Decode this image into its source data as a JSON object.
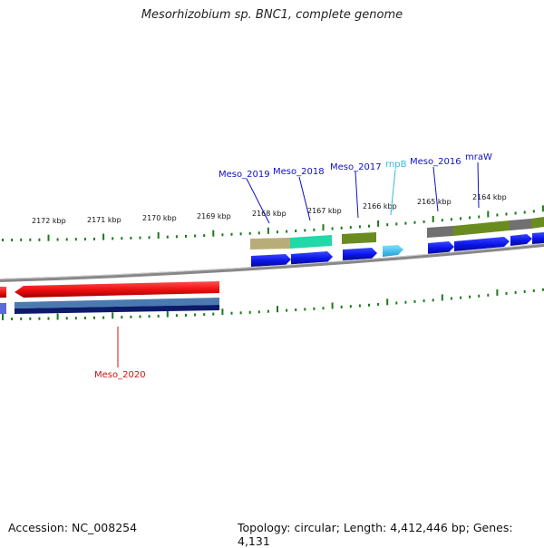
{
  "title": "Mesorhizobium sp. BNC1, complete genome",
  "footer": {
    "accession": "Accession: NC_008254",
    "topology": "Topology: circular; Length: 4,412,446 bp; Genes: 4,131"
  },
  "scale_labels": [
    "2172 kbp",
    "2171 kbp",
    "2170 kbp",
    "2169 kbp",
    "2168 kbp",
    "2167 kbp",
    "2166 kbp",
    "2165 kbp",
    "2164 kbp"
  ],
  "gene_labels": [
    {
      "text": "Meso_2019",
      "color": "#1010c0"
    },
    {
      "text": "Meso_2018",
      "color": "#1010c0"
    },
    {
      "text": "Meso_2017",
      "color": "#1010c0"
    },
    {
      "text": "rnpB",
      "color": "#30b8e0"
    },
    {
      "text": "Meso_2016",
      "color": "#1010c0"
    },
    {
      "text": "mraW",
      "color": "#1010c0"
    },
    {
      "text": "Meso_2020",
      "color": "#d01010"
    }
  ],
  "colors": {
    "forward_cds": "#0a14e6",
    "reverse_cds": "#f01010",
    "rna": "#40c8f0",
    "backbone": "#888888",
    "tick": "#1a7a1a"
  }
}
